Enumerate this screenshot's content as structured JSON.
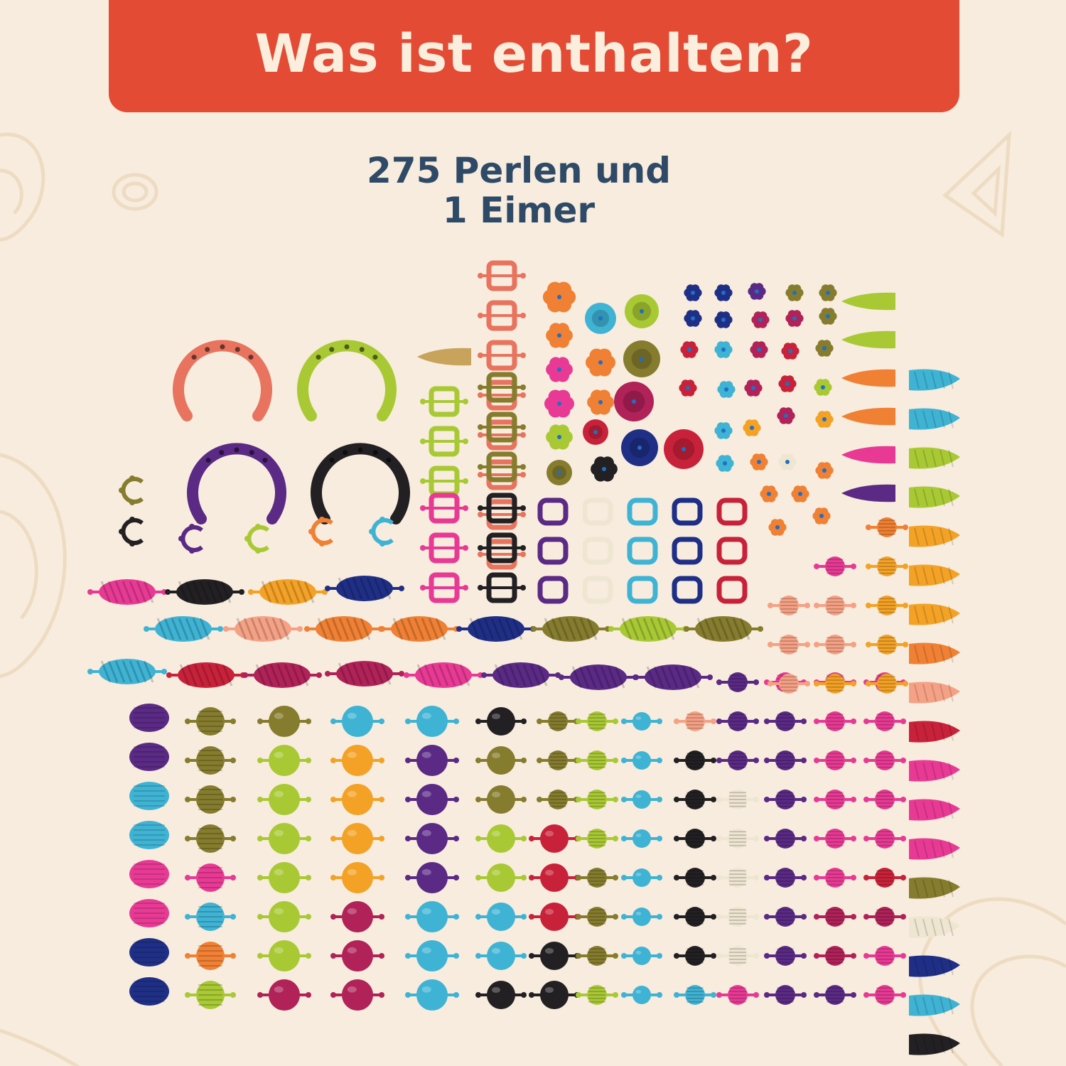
{
  "banner": {
    "title": "Was ist enthalten?"
  },
  "subtitle": {
    "line1": "275 Perlen und",
    "line2": "1 Eimer"
  },
  "colors": {
    "background": "#f7ecdd",
    "banner": "#e34b35",
    "banner_text": "#fbeedd",
    "subtitle_text": "#2e4a67",
    "bead_palette": [
      "#e8735e",
      "#a9c934",
      "#5a2a85",
      "#232023",
      "#857c2e",
      "#3fb3d4",
      "#e83a94",
      "#f3a226",
      "#f08034",
      "#1f2f86",
      "#c8223a",
      "#b02258",
      "#efe6d2",
      "#f5a185"
    ]
  }
}
